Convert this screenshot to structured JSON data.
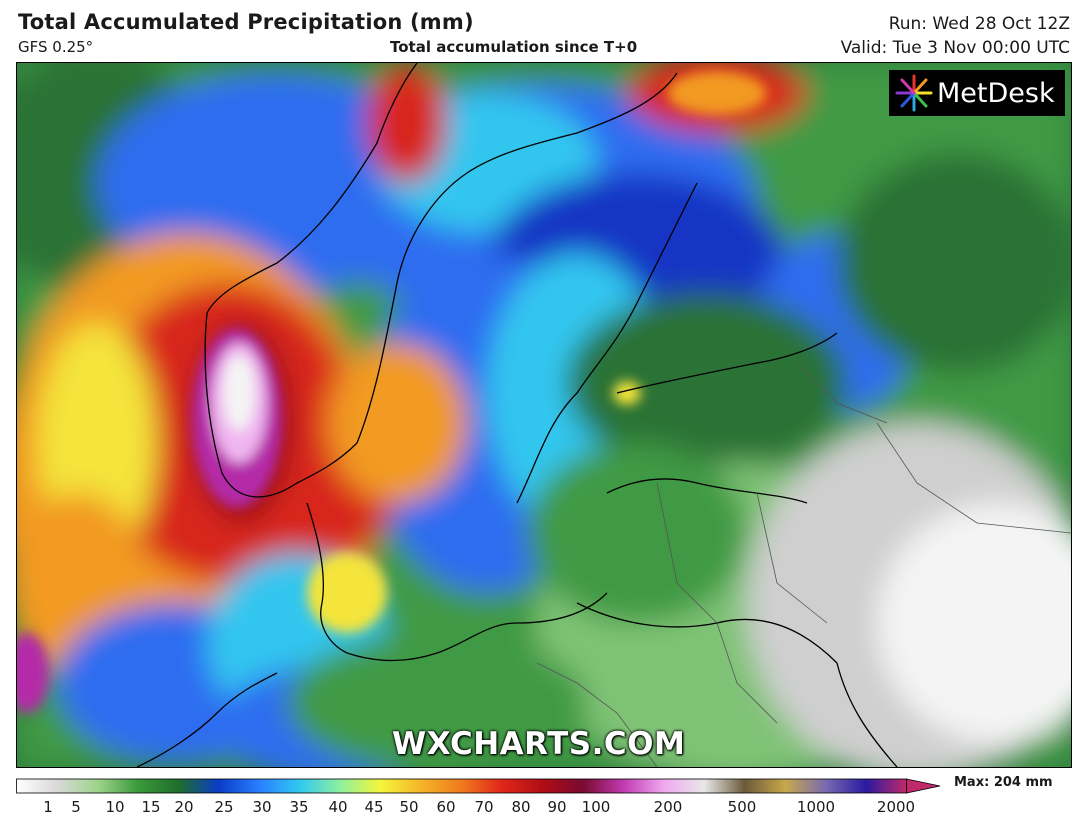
{
  "header": {
    "title": "Total Accumulated Precipitation (mm)",
    "model": "GFS 0.25°",
    "subtitle": "Total accumulation since T+0",
    "run": "Run: Wed 28 Oct 12Z",
    "valid": "Valid: Tue 3 Nov 00:00 UTC"
  },
  "logo": {
    "text": "MetDesk"
  },
  "watermark": "WXCHARTS.COM",
  "legend": {
    "max_label": "Max: 204 mm",
    "ticks": [
      "1",
      "5",
      "10",
      "15",
      "20",
      "25",
      "30",
      "35",
      "40",
      "45",
      "50",
      "60",
      "70",
      "80",
      "90",
      "100",
      "200",
      "500",
      "1000",
      "2000"
    ],
    "colors": [
      "#ffffff",
      "#d9d9d9",
      "#9fd48c",
      "#3a9a3c",
      "#1f6e2a",
      "#0a3cc8",
      "#2a7fff",
      "#31c8f0",
      "#8ef0a0",
      "#f5f53a",
      "#f5b428",
      "#f07a1e",
      "#e0261a",
      "#b00e14",
      "#7a0a30",
      "#c03ab0",
      "#f0a8f0",
      "#e8e8e8",
      "#6b5a3a",
      "#c8a84a",
      "#7a6ab0",
      "#2a1aa0",
      "#c02a6a"
    ]
  },
  "map": {
    "colors": {
      "green_dark": "#2a7234",
      "green": "#3f9a45",
      "green_light": "#7fc276",
      "grey": "#cfcfcf",
      "white": "#f4f4f4",
      "blue_dark": "#1636c4",
      "blue": "#2f6df0",
      "cyan": "#33c6ef",
      "yellow": "#f4e43a",
      "orange": "#f29a24",
      "red": "#d8261c",
      "darkred": "#9c0f14",
      "magenta": "#b42aa8",
      "pink": "#f0b6f0",
      "land_border": "#000000"
    }
  }
}
